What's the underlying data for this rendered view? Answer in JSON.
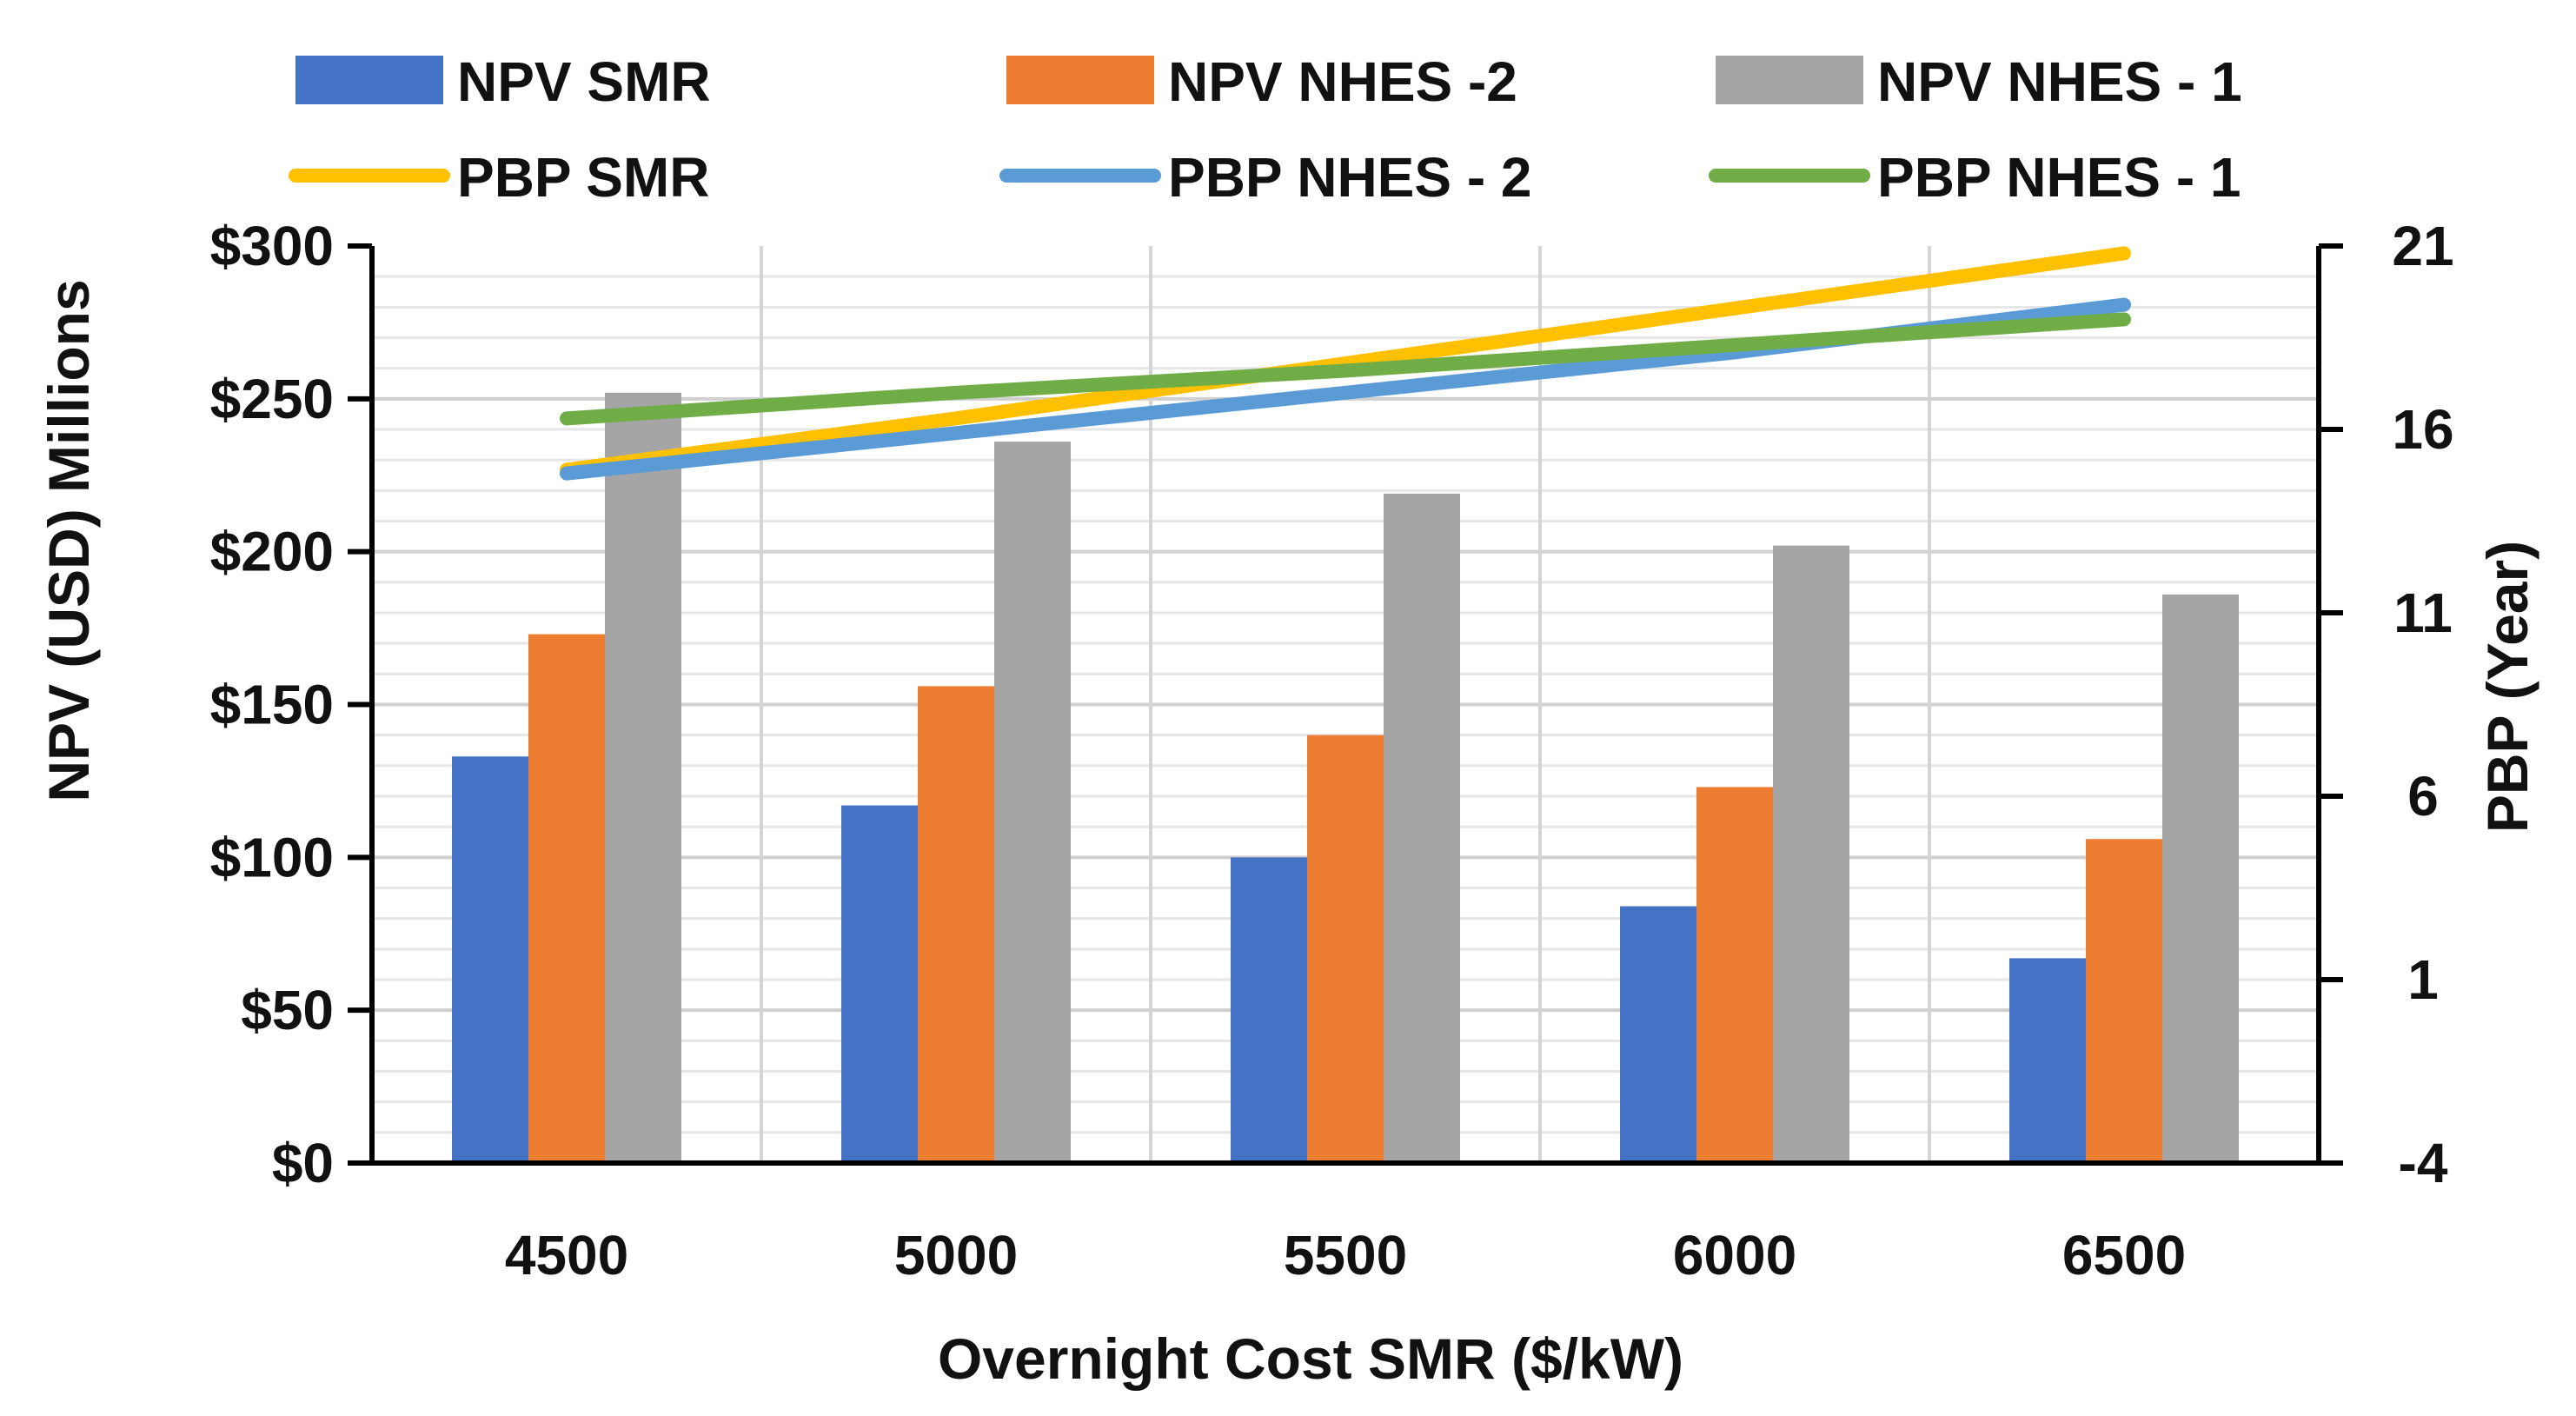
{
  "chart_data": {
    "type": "bar",
    "categories": [
      "4500",
      "5000",
      "5500",
      "6000",
      "6500"
    ],
    "xlabel": "Overnight Cost SMR ($/kW)",
    "ylabel": "NPV (USD)  Millions",
    "y2label": "PBP (Year)",
    "ylim": [
      0,
      300
    ],
    "y2lim": [
      -4,
      21
    ],
    "yticks": [
      "$0",
      "$50",
      "$100",
      "$150",
      "$200",
      "$250",
      "$300"
    ],
    "y2ticks": [
      "-4",
      "1",
      "6",
      "11",
      "16",
      "21"
    ],
    "grid": true,
    "legend_position": "top",
    "series": [
      {
        "name": "NPV SMR",
        "type": "bar",
        "axis": "left",
        "color": "#4472C4",
        "values": [
          133,
          117,
          100,
          84,
          67
        ]
      },
      {
        "name": "NPV NHES -2",
        "type": "bar",
        "axis": "left",
        "color": "#ED7D31",
        "values": [
          173,
          156,
          140,
          123,
          106
        ]
      },
      {
        "name": "NPV NHES - 1",
        "type": "bar",
        "axis": "left",
        "color": "#A5A5A5",
        "values": [
          252,
          236,
          219,
          202,
          186
        ]
      },
      {
        "name": "PBP SMR",
        "type": "line",
        "axis": "right",
        "color": "#FFC000",
        "values": [
          14.9,
          16.3,
          17.8,
          19.3,
          20.8
        ]
      },
      {
        "name": "PBP NHES - 2",
        "type": "line",
        "axis": "right",
        "color": "#5B9BD5",
        "values": [
          14.8,
          15.9,
          17.0,
          18.1,
          19.4
        ]
      },
      {
        "name": "PBP NHES - 1",
        "type": "line",
        "axis": "right",
        "color": "#70AD47",
        "values": [
          16.3,
          17.0,
          17.6,
          18.3,
          19.0
        ]
      }
    ]
  }
}
